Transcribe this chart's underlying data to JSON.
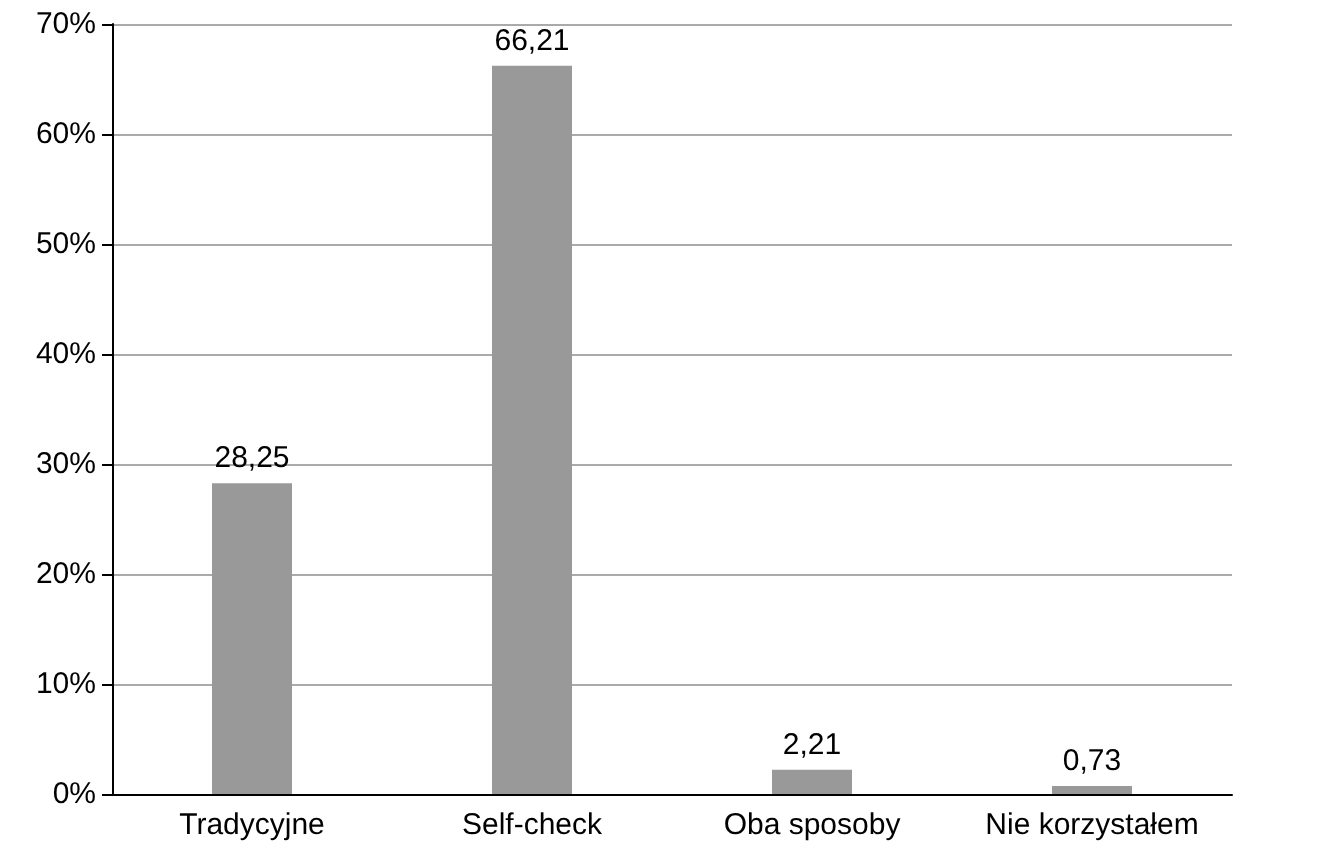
{
  "chart_data": {
    "type": "bar",
    "categories": [
      "Tradycyjne",
      "Self-check",
      "Oba sposoby",
      "Nie korzystałem"
    ],
    "values": [
      28.25,
      66.21,
      2.21,
      0.73
    ],
    "color": "#999999",
    "value_labels": [
      "28,25",
      "66,21",
      "2,21",
      "0,73"
    ],
    "ylim": [
      0,
      70
    ],
    "yticks": [
      {
        "value": 0,
        "label": "0%"
      },
      {
        "value": 10,
        "label": "10%"
      },
      {
        "value": 20,
        "label": "20%"
      },
      {
        "value": 30,
        "label": "30%"
      },
      {
        "value": 40,
        "label": "40%"
      },
      {
        "value": 50,
        "label": "50%"
      },
      {
        "value": 60,
        "label": "60%"
      },
      {
        "value": 70,
        "label": "70%"
      }
    ],
    "grid": "y"
  }
}
